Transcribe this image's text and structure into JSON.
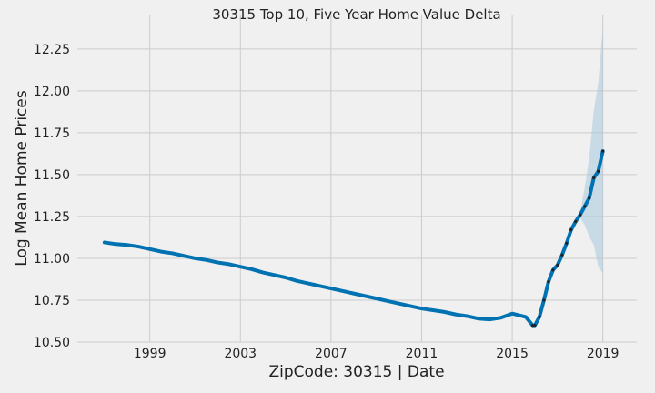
{
  "chart_data": {
    "type": "line",
    "title": "30315 Top 10, Five Year Home Value Delta",
    "xlabel": "ZipCode: 30315 | Date",
    "ylabel": "Log Mean Home Prices",
    "xlim": [
      1995.8,
      2020.5
    ],
    "ylim": [
      10.5,
      12.45
    ],
    "x_ticks": [
      1999,
      2003,
      2007,
      2011,
      2015,
      2019
    ],
    "y_ticks": [
      10.5,
      10.75,
      11.0,
      11.25,
      11.5,
      11.75,
      12.0,
      12.25
    ],
    "grid": true,
    "colors": {
      "line": "#0072b2",
      "band": "#a9c8e0",
      "observed": "#222222",
      "grid": "#cbcbcb",
      "background": "#f0f0f0"
    },
    "series": [
      {
        "values_kind": "model-fit",
        "x": [
          1997.0,
          1997.5,
          1998.0,
          1998.5,
          1999.0,
          1999.5,
          2000.0,
          2000.5,
          2001.0,
          2001.5,
          2002.0,
          2002.5,
          2003.0,
          2003.5,
          2004.0,
          2004.5,
          2005.0,
          2005.5,
          2006.0,
          2006.5,
          2007.0,
          2007.5,
          2008.0,
          2008.5,
          2009.0,
          2009.5,
          2010.0,
          2010.5,
          2011.0,
          2011.5,
          2012.0,
          2012.5,
          2013.0,
          2013.5,
          2014.0,
          2014.5,
          2015.0,
          2015.3,
          2015.6,
          2015.9,
          2016.0,
          2016.2,
          2016.4,
          2016.6,
          2016.8,
          2017.0,
          2017.2,
          2017.4,
          2017.6,
          2017.8,
          2018.0,
          2018.2,
          2018.4,
          2018.6,
          2018.8,
          2019.0
        ],
        "y": [
          11.095,
          11.085,
          11.08,
          11.07,
          11.055,
          11.04,
          11.03,
          11.015,
          11.0,
          10.99,
          10.975,
          10.965,
          10.95,
          10.935,
          10.915,
          10.9,
          10.885,
          10.865,
          10.85,
          10.835,
          10.82,
          10.805,
          10.79,
          10.775,
          10.76,
          10.745,
          10.73,
          10.715,
          10.7,
          10.69,
          10.68,
          10.665,
          10.655,
          10.64,
          10.635,
          10.645,
          10.67,
          10.66,
          10.65,
          10.6,
          10.6,
          10.65,
          10.75,
          10.86,
          10.93,
          10.96,
          11.02,
          11.09,
          11.17,
          11.22,
          11.26,
          11.31,
          11.36,
          11.48,
          11.52,
          11.64
        ]
      },
      {
        "values_kind": "confidence-interval",
        "x": [
          2018.0,
          2018.2,
          2018.4,
          2018.6,
          2018.8,
          2019.0
        ],
        "lower": [
          11.24,
          11.2,
          11.13,
          11.08,
          10.95,
          10.91
        ],
        "upper": [
          11.28,
          11.42,
          11.6,
          11.88,
          12.05,
          12.38
        ]
      }
    ]
  }
}
